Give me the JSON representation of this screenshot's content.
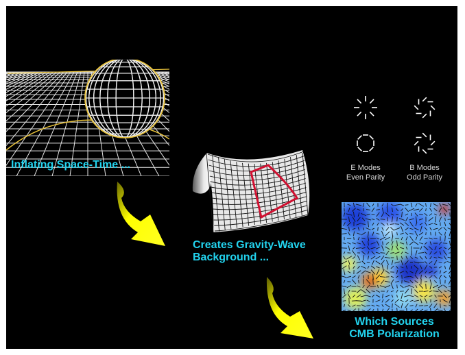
{
  "captions": {
    "inflating": "Inflating Space-Time ...",
    "creates_line1": "Creates Gravity-Wave",
    "creates_line2": "Background ...",
    "sources_line1": "Which Sources",
    "sources_line2": "CMB Polarization"
  },
  "legend": {
    "e_modes": {
      "title": "E Modes",
      "subtitle": "Even Parity"
    },
    "b_modes": {
      "title": "B Modes",
      "subtitle": "Odd Parity"
    }
  },
  "colors": {
    "background": "#000000",
    "caption": "#22d3ee",
    "arrow": "#ffff00",
    "ring": "#e8c23a",
    "patch_outline": "#d01030",
    "legend_text": "#d8d8d8"
  },
  "icons": {
    "inflation": "inflating-grid-sphere",
    "curved_grid": "curved-spacetime-grid",
    "arrows": "curved-arrow",
    "e_mode_symbols": [
      "e-mode-radial-pattern",
      "e-mode-tangential-pattern"
    ],
    "b_mode_symbols": [
      "b-mode-clockwise-pattern",
      "b-mode-counterclockwise-pattern"
    ],
    "cmb_map": "cmb-polarization-map"
  }
}
